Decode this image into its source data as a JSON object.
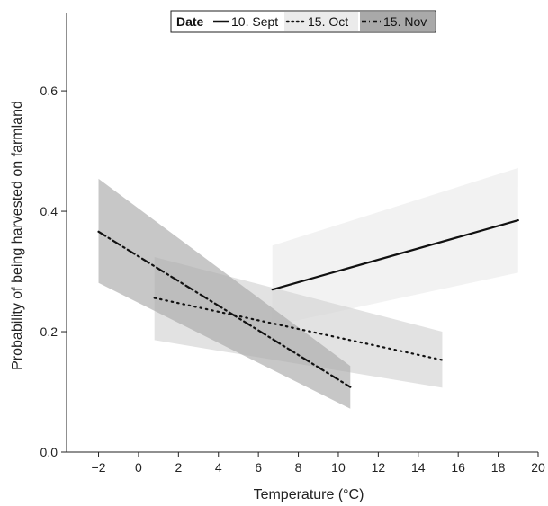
{
  "chart_data": {
    "type": "line",
    "title": "",
    "xlabel": "Temperature (°C)",
    "ylabel": "Probability of being harvested on farmland",
    "xlim": [
      -3.6,
      20
    ],
    "ylim": [
      0,
      0.73
    ],
    "xticks": [
      -2,
      0,
      2,
      4,
      6,
      8,
      10,
      12,
      14,
      16,
      18,
      20
    ],
    "yticks": [
      0.0,
      0.2,
      0.4,
      0.6
    ],
    "ytick_labels": [
      "0.0",
      "0.2",
      "0.4",
      "0.6"
    ],
    "grid": false,
    "legend": {
      "title": "Date",
      "placement": "top-center",
      "entries": [
        "10. Sept",
        "15. Oct",
        "15. Nov"
      ]
    },
    "series": [
      {
        "name": "10. Sept",
        "line_style": "solid",
        "band_color": "#ebebeb",
        "x": [
          6.7,
          19
        ],
        "y": [
          0.27,
          0.385
        ],
        "lower": [
          0.21,
          0.298
        ],
        "upper": [
          0.343,
          0.472
        ]
      },
      {
        "name": "15. Oct",
        "line_style": "dotted",
        "band_color": "#d3d3d3",
        "x": [
          0.8,
          15.2
        ],
        "y": [
          0.256,
          0.153
        ],
        "lower": [
          0.186,
          0.107
        ],
        "upper": [
          0.324,
          0.2
        ]
      },
      {
        "name": "15. Nov",
        "line_style": "dashdot",
        "band_color": "#a9a9a9",
        "x": [
          -2,
          10.6
        ],
        "y": [
          0.366,
          0.108
        ],
        "lower": [
          0.281,
          0.072
        ],
        "upper": [
          0.454,
          0.143
        ]
      }
    ]
  }
}
